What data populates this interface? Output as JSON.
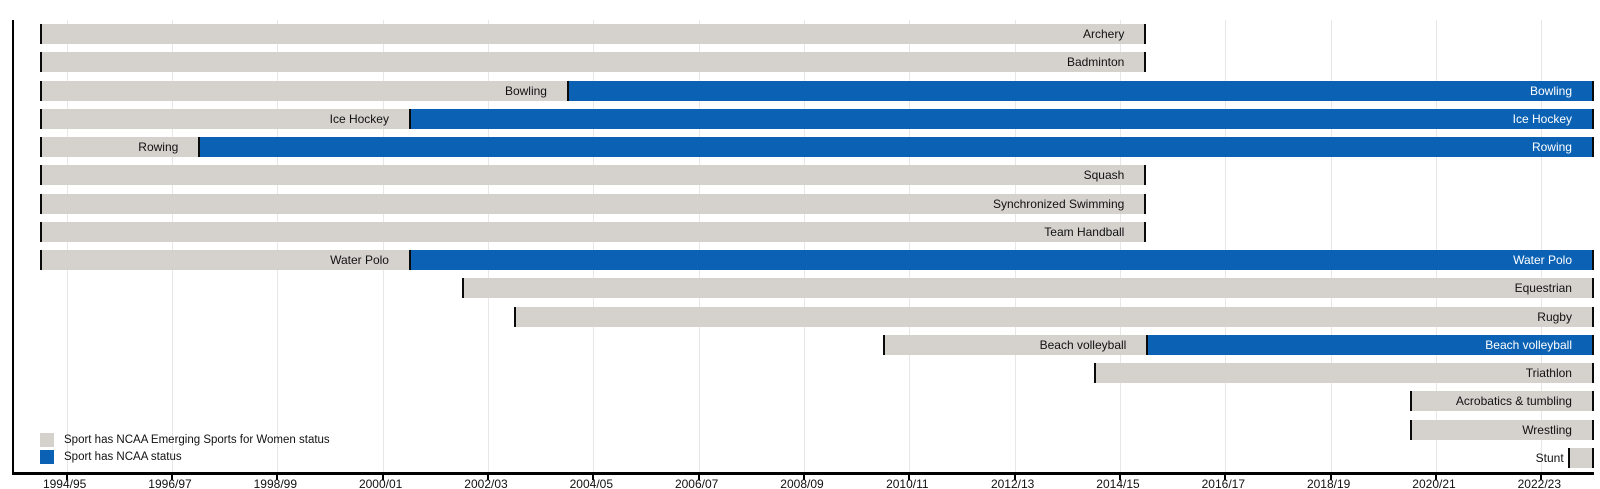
{
  "page": {
    "background": "#ffffff"
  },
  "legend": {
    "items": [
      {
        "key": "esw",
        "label": "Sport has NCAA Emerging Sports for Women status",
        "color": "#d5d2ce"
      },
      {
        "key": "ncaa",
        "label": "Sport has NCAA status",
        "color": "#0b62b4"
      }
    ]
  },
  "chart_data": {
    "type": "timeline-gantt",
    "title": "",
    "x_axis": {
      "unit": "academic-year",
      "range": [
        1994.0,
        2024.0
      ],
      "tick_positions": [
        1995,
        1997,
        1999,
        2001,
        2003,
        2005,
        2007,
        2009,
        2011,
        2013,
        2015,
        2017,
        2019,
        2021,
        2023
      ],
      "tick_labels": [
        "1994/95",
        "1996/97",
        "1998/99",
        "2000/01",
        "2002/03",
        "2004/05",
        "2006/07",
        "2008/09",
        "2010/11",
        "2012/13",
        "2014/15",
        "2016/17",
        "2018/19",
        "2020/21",
        "2022/23"
      ],
      "grid": true,
      "gridline_color": "#e8e7e3"
    },
    "status_colors": {
      "esw": "#d5d2ce",
      "ncaa": "#0b62b4"
    },
    "legend_position": "bottom-left-inside",
    "rows": [
      {
        "sport": "Archery",
        "segments": [
          {
            "status": "esw",
            "from": 1994.5,
            "till": 2015.5,
            "label": "Archery"
          }
        ]
      },
      {
        "sport": "Badminton",
        "segments": [
          {
            "status": "esw",
            "from": 1994.5,
            "till": 2015.5,
            "label": "Badminton"
          }
        ]
      },
      {
        "sport": "Bowling",
        "segments": [
          {
            "status": "esw",
            "from": 1994.5,
            "till": 2004.5,
            "label": "Bowling"
          },
          {
            "status": "ncaa",
            "from": 2004.5,
            "till": 2024.0,
            "label": "Bowling"
          }
        ]
      },
      {
        "sport": "Ice Hockey",
        "segments": [
          {
            "status": "esw",
            "from": 1994.5,
            "till": 2001.5,
            "label": "Ice Hockey"
          },
          {
            "status": "ncaa",
            "from": 2001.5,
            "till": 2024.0,
            "label": "Ice Hockey"
          }
        ]
      },
      {
        "sport": "Rowing",
        "segments": [
          {
            "status": "esw",
            "from": 1994.5,
            "till": 1997.5,
            "label": "Rowing"
          },
          {
            "status": "ncaa",
            "from": 1997.5,
            "till": 2024.0,
            "label": "Rowing"
          }
        ]
      },
      {
        "sport": "Squash",
        "segments": [
          {
            "status": "esw",
            "from": 1994.5,
            "till": 2015.5,
            "label": "Squash"
          }
        ]
      },
      {
        "sport": "Synchronized Swimming",
        "segments": [
          {
            "status": "esw",
            "from": 1994.5,
            "till": 2015.5,
            "label": "Synchronized Swimming"
          }
        ]
      },
      {
        "sport": "Team Handball",
        "segments": [
          {
            "status": "esw",
            "from": 1994.5,
            "till": 2015.5,
            "label": "Team Handball"
          }
        ]
      },
      {
        "sport": "Water Polo",
        "segments": [
          {
            "status": "esw",
            "from": 1994.5,
            "till": 2001.5,
            "label": "Water Polo"
          },
          {
            "status": "ncaa",
            "from": 2001.5,
            "till": 2024.0,
            "label": "Water Polo"
          }
        ]
      },
      {
        "sport": "Equestrian",
        "segments": [
          {
            "status": "esw",
            "from": 2002.5,
            "till": 2024.0,
            "label": "Equestrian"
          }
        ]
      },
      {
        "sport": "Rugby",
        "segments": [
          {
            "status": "esw",
            "from": 2003.5,
            "till": 2024.0,
            "label": "Rugby"
          }
        ]
      },
      {
        "sport": "Beach volleyball",
        "segments": [
          {
            "status": "esw",
            "from": 2010.5,
            "till": 2015.5,
            "label": "Beach volleyball"
          },
          {
            "status": "ncaa",
            "from": 2015.5,
            "till": 2024.0,
            "label": "Beach volleyball"
          }
        ]
      },
      {
        "sport": "Triathlon",
        "segments": [
          {
            "status": "esw",
            "from": 2014.5,
            "till": 2024.0,
            "label": "Triathlon"
          }
        ]
      },
      {
        "sport": "Acrobatics & tumbling",
        "segments": [
          {
            "status": "esw",
            "from": 2020.5,
            "till": 2024.0,
            "label": "Acrobatics & tumbling"
          }
        ]
      },
      {
        "sport": "Wrestling",
        "segments": [
          {
            "status": "esw",
            "from": 2020.5,
            "till": 2024.0,
            "label": "Wrestling"
          }
        ]
      },
      {
        "sport": "Stunt",
        "segments": [
          {
            "status": "esw",
            "from": 2023.5,
            "till": 2024.0,
            "label": "Stunt",
            "label_position": "outside-left"
          }
        ]
      }
    ]
  }
}
